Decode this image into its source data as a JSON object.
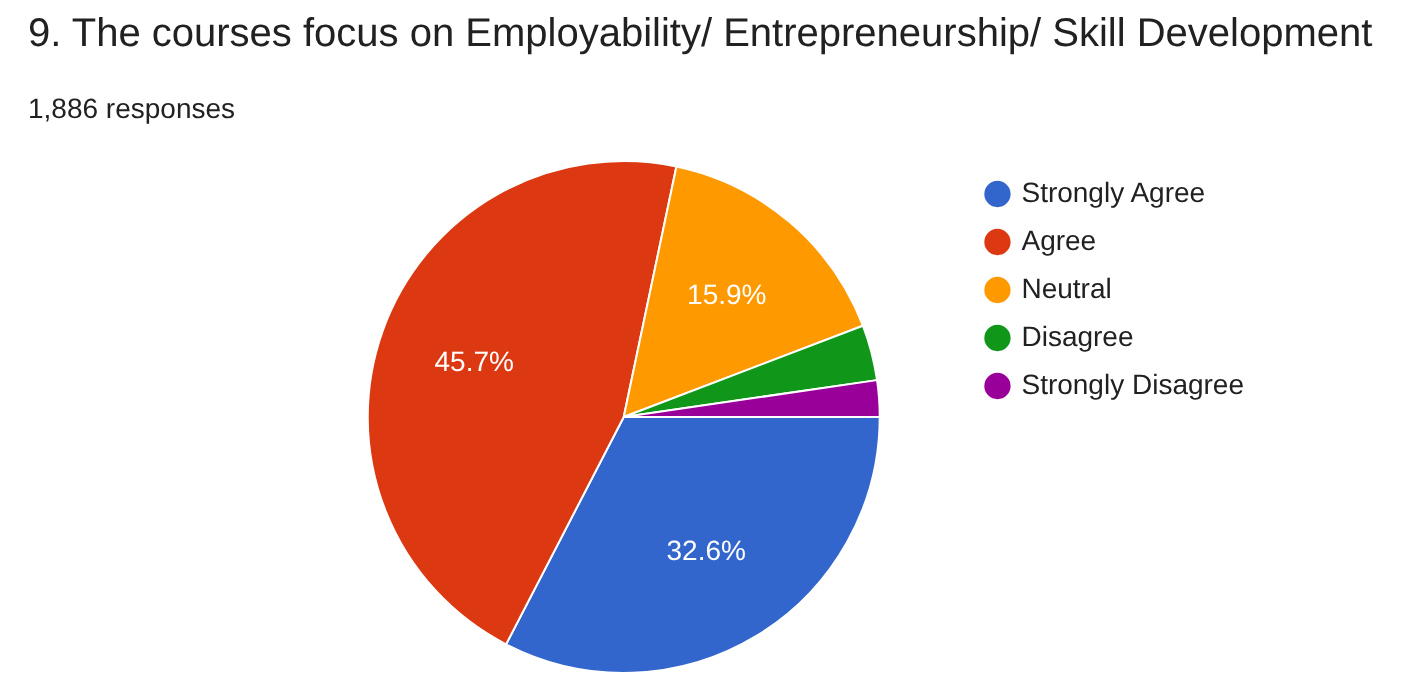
{
  "chart_data": {
    "type": "pie",
    "title": "9. The courses focus on Employability/ Entrepreneurship/ Skill Development",
    "subtitle": "1,886 responses",
    "categories": [
      "Strongly Agree",
      "Agree",
      "Neutral",
      "Disagree",
      "Strongly Disagree"
    ],
    "values": [
      32.6,
      45.7,
      15.9,
      3.5,
      2.3
    ],
    "colors": [
      "#3366cc",
      "#dc3912",
      "#ff9900",
      "#109618",
      "#990099"
    ],
    "value_labels": [
      "32.6%",
      "45.7%",
      "15.9%",
      null,
      null
    ],
    "legend": "right"
  }
}
